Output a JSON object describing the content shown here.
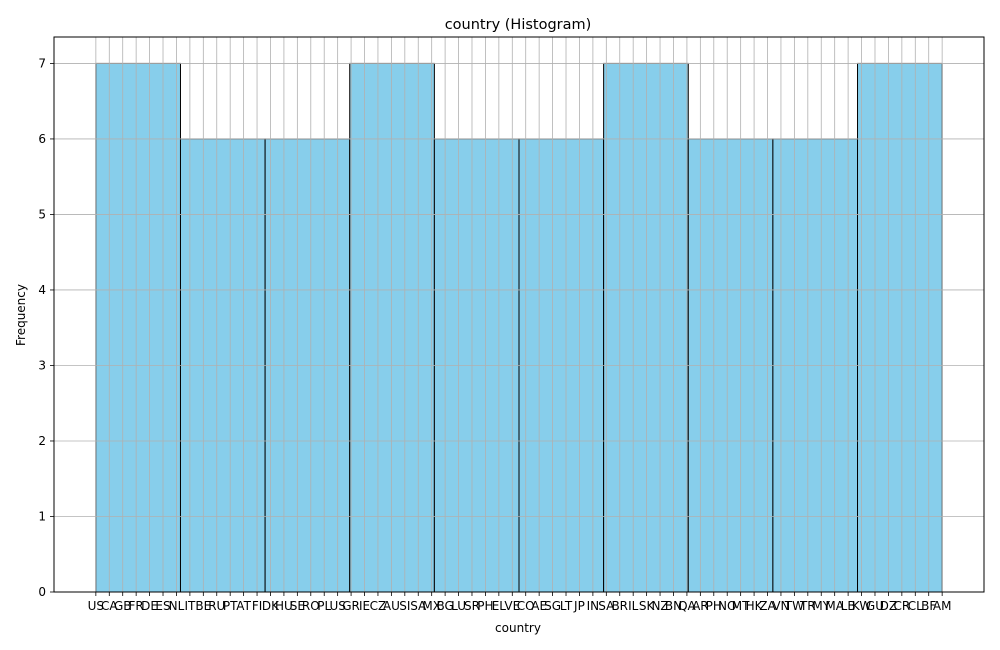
{
  "chart_data": {
    "type": "bar",
    "title": "country (Histogram)",
    "xlabel": "country",
    "ylabel": "Frequency",
    "categories": [
      "US",
      "CA",
      "GB",
      "FR",
      "DE",
      "ES",
      "NL",
      "IT",
      "BE",
      "RU",
      "PT",
      "AT",
      "FI",
      "DK",
      "HU",
      "SE",
      "RO",
      "PL",
      "US",
      "GR",
      "IE",
      "CZ",
      "AU",
      "SI",
      "SA",
      "MX",
      "BG",
      "LU",
      "SR",
      "PH",
      "EL",
      "VE",
      "CO",
      "AE",
      "SG",
      "LT",
      "JP",
      "IN",
      "SA",
      "BR",
      "IL",
      "SK",
      "NZ",
      "BN",
      "QA",
      "AR",
      "PH",
      "NO",
      "MT",
      "HK",
      "ZA",
      "VN",
      "TW",
      "TR",
      "MY",
      "MA",
      "LB",
      "KW",
      "GU",
      "DZ",
      "CR",
      "CL",
      "BF",
      "AM"
    ],
    "bins": [
      {
        "value": 7
      },
      {
        "value": 6
      },
      {
        "value": 6
      },
      {
        "value": 7
      },
      {
        "value": 6
      },
      {
        "value": 6
      },
      {
        "value": 7
      },
      {
        "value": 6
      },
      {
        "value": 6
      },
      {
        "value": 7
      }
    ],
    "yticks": [
      0,
      1,
      2,
      3,
      4,
      5,
      6,
      7
    ],
    "ylim": [
      0,
      7.35
    ],
    "grid": true,
    "bar_color": "#87CEEB",
    "edge_color": "#000000",
    "grid_color": "#b0b0b0"
  }
}
